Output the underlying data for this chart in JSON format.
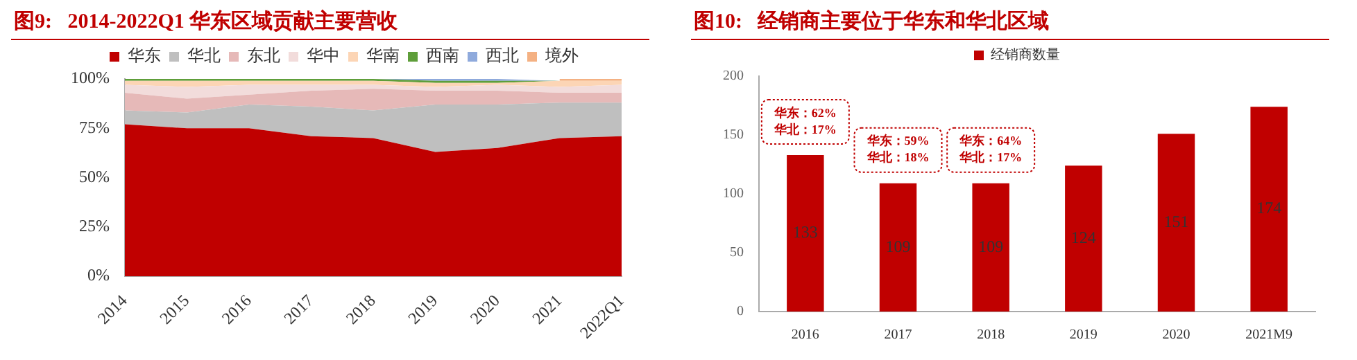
{
  "chart_data": [
    {
      "type": "area",
      "title": "图9:   2014-2022Q1 华东区域贡献主要营收",
      "stacked": true,
      "legend": "top",
      "grid": false,
      "categories": [
        "2014",
        "2015",
        "2016",
        "2017",
        "2018",
        "2019",
        "2020",
        "2021",
        "2022Q1"
      ],
      "ylim": [
        0,
        100
      ],
      "yticks": [
        {
          "value": 0,
          "label": "0%"
        },
        {
          "value": 25,
          "label": "25%"
        },
        {
          "value": 50,
          "label": "50%"
        },
        {
          "value": 75,
          "label": "75%"
        },
        {
          "value": 100,
          "label": "100%"
        }
      ],
      "series": [
        {
          "name": "华东",
          "color": "#c00000",
          "values": [
            77,
            75,
            75,
            71,
            70,
            63,
            65,
            70,
            71
          ]
        },
        {
          "name": "华北",
          "color": "#bfbfbf",
          "values": [
            7,
            8,
            12,
            15,
            14,
            24,
            22,
            18,
            17
          ]
        },
        {
          "name": "东北",
          "color": "#e6b9b8",
          "values": [
            9,
            7,
            5,
            8,
            11,
            7,
            7,
            5,
            5
          ]
        },
        {
          "name": "华中",
          "color": "#f2dcdb",
          "values": [
            4,
            6,
            5,
            3,
            2,
            2,
            3,
            3,
            4
          ]
        },
        {
          "name": "华南",
          "color": "#fcd5b5",
          "values": [
            2,
            3,
            2,
            2,
            2,
            2,
            1,
            3,
            2
          ]
        },
        {
          "name": "西南",
          "color": "#5e9e3a",
          "values": [
            1,
            1,
            1,
            1,
            1,
            1,
            1,
            0,
            0
          ]
        },
        {
          "name": "西北",
          "color": "#8faadc",
          "values": [
            0,
            0,
            0,
            0,
            0,
            1,
            1,
            0,
            0
          ]
        },
        {
          "name": "境外",
          "color": "#f4b183",
          "values": [
            null,
            null,
            null,
            null,
            null,
            null,
            null,
            1,
            1
          ]
        }
      ]
    },
    {
      "type": "bar",
      "title": "图10:   经销商主要位于华东和华北区域",
      "legend": "top",
      "grid": false,
      "data_labels": true,
      "categories": [
        "2016",
        "2017",
        "2018",
        "2019",
        "2020",
        "2021M9"
      ],
      "ylim": [
        0,
        200
      ],
      "yticks": [
        0,
        50,
        100,
        150,
        200
      ],
      "series": [
        {
          "name": "经销商数量",
          "color": "#c00000",
          "values": [
            133,
            109,
            109,
            124,
            151,
            174
          ]
        }
      ],
      "annotations": [
        "华东：62%\n华北：17%",
        "华东：59%\n华北：18%",
        "华东：64%\n华北：17%"
      ]
    }
  ]
}
